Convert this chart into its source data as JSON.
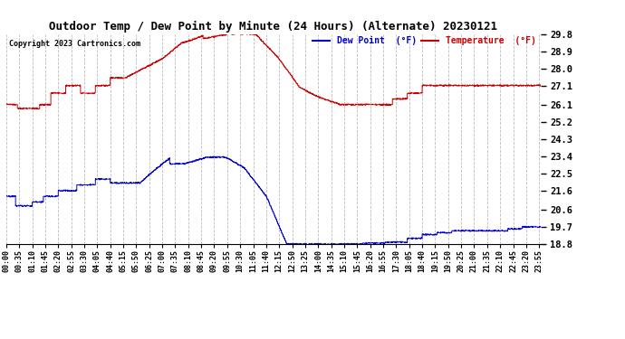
{
  "title": "Outdoor Temp / Dew Point by Minute (24 Hours) (Alternate) 20230121",
  "copyright": "Copyright 2023 Cartronics.com",
  "legend_dew": "Dew Point  (°F)",
  "legend_temp": "Temperature  (°F)",
  "temp_color": "#cc0000",
  "dew_color": "#0000cc",
  "background_color": "#ffffff",
  "grid_color": "#aaaaaa",
  "ylim": [
    18.8,
    29.8
  ],
  "yticks": [
    18.8,
    19.7,
    20.6,
    21.6,
    22.5,
    23.4,
    24.3,
    25.2,
    26.1,
    27.1,
    28.0,
    28.9,
    29.8
  ],
  "xtick_interval": 35,
  "total_minutes": 1440
}
